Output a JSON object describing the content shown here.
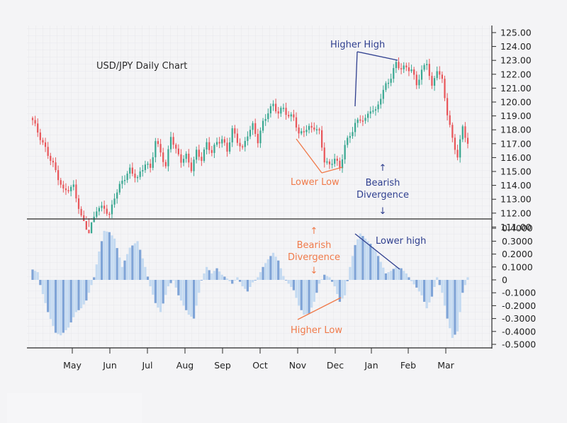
{
  "chart_data": [
    {
      "type": "candlestick",
      "title": "USD/JPY Daily Chart",
      "ylim": [
        110.5,
        125.5
      ],
      "y_ticks": [
        "125.00",
        "124.00",
        "123.00",
        "122.00",
        "121.00",
        "120.00",
        "119.00",
        "118.00",
        "117.00",
        "116.00",
        "115.00",
        "114.00",
        "113.00",
        "112.00",
        "111.00"
      ],
      "x_months": [
        "May",
        "Jun",
        "Jul",
        "Aug",
        "Sep",
        "Oct",
        "Nov",
        "Dec",
        "Jan",
        "Feb",
        "Mar"
      ],
      "grid": true,
      "colors": {
        "up": "#3aa892",
        "down": "#e8575b"
      },
      "close_path": [
        [
          0,
          118.7
        ],
        [
          4,
          117.0
        ],
        [
          8,
          115.5
        ],
        [
          12,
          113.6
        ],
        [
          16,
          113.9
        ],
        [
          19,
          111.7
        ],
        [
          22,
          110.6
        ],
        [
          25,
          112.3
        ],
        [
          28,
          112.4
        ],
        [
          30,
          111.8
        ],
        [
          32,
          113.2
        ],
        [
          35,
          114.3
        ],
        [
          38,
          115.1
        ],
        [
          41,
          114.5
        ],
        [
          44,
          115.6
        ],
        [
          46,
          115.2
        ],
        [
          48,
          117.2
        ],
        [
          50,
          116.4
        ],
        [
          52,
          115.3
        ],
        [
          54,
          117.6
        ],
        [
          56,
          116.5
        ],
        [
          58,
          115.8
        ],
        [
          60,
          116.1
        ],
        [
          62,
          115.2
        ],
        [
          64,
          116.4
        ],
        [
          66,
          115.9
        ],
        [
          68,
          117.0
        ],
        [
          70,
          116.4
        ],
        [
          72,
          117.1
        ],
        [
          74,
          117.3
        ],
        [
          76,
          116.5
        ],
        [
          78,
          118.0
        ],
        [
          80,
          117.2
        ],
        [
          82,
          116.6
        ],
        [
          84,
          117.7
        ],
        [
          86,
          118.3
        ],
        [
          88,
          117.2
        ],
        [
          90,
          118.5
        ],
        [
          92,
          119.3
        ],
        [
          94,
          119.8
        ],
        [
          96,
          119.2
        ],
        [
          98,
          119.6
        ],
        [
          100,
          118.9
        ],
        [
          102,
          119.0
        ],
        [
          104,
          117.6
        ],
        [
          106,
          118.0
        ],
        [
          108,
          118.1
        ],
        [
          110,
          118.2
        ],
        [
          112,
          117.8
        ],
        [
          114,
          115.8
        ],
        [
          116,
          115.4
        ],
        [
          118,
          116.0
        ],
        [
          120,
          115.2
        ],
        [
          122,
          116.9
        ],
        [
          124,
          117.6
        ],
        [
          126,
          118.4
        ],
        [
          128,
          118.8
        ],
        [
          130,
          118.7
        ],
        [
          132,
          119.5
        ],
        [
          134,
          119.3
        ],
        [
          136,
          120.4
        ],
        [
          138,
          121.2
        ],
        [
          140,
          121.8
        ],
        [
          142,
          122.8
        ],
        [
          144,
          122.4
        ],
        [
          146,
          122.5
        ],
        [
          148,
          122.3
        ],
        [
          150,
          121.3
        ],
        [
          152,
          122.2
        ],
        [
          154,
          122.9
        ],
        [
          156,
          121.0
        ],
        [
          158,
          122.4
        ],
        [
          160,
          121.5
        ],
        [
          162,
          119.2
        ],
        [
          164,
          117.3
        ],
        [
          166,
          116.1
        ],
        [
          168,
          118.2
        ],
        [
          170,
          117.0
        ]
      ]
    },
    {
      "type": "bar",
      "ylim": [
        -0.5,
        0.4
      ],
      "y_ticks": [
        "0.4000",
        "0.3000",
        "0.2000",
        "0.1000",
        "0",
        "-0.1000",
        "-0.2000",
        "-0.3000",
        "-0.4000",
        "-0.5000"
      ],
      "x_months": [
        "May",
        "Jun",
        "Jul",
        "Aug",
        "Sep",
        "Oct",
        "Nov",
        "Dec",
        "Jan",
        "Feb",
        "Mar"
      ],
      "colors": {
        "light": "#c4daf1",
        "dark": "#7fa4d7"
      },
      "value_path": [
        [
          0,
          0.08
        ],
        [
          2,
          0.06
        ],
        [
          3,
          -0.04
        ],
        [
          6,
          -0.25
        ],
        [
          9,
          -0.41
        ],
        [
          11,
          -0.43
        ],
        [
          14,
          -0.37
        ],
        [
          17,
          -0.25
        ],
        [
          19,
          -0.22
        ],
        [
          21,
          -0.16
        ],
        [
          24,
          0.02
        ],
        [
          26,
          0.22
        ],
        [
          28,
          0.38
        ],
        [
          30,
          0.37
        ],
        [
          32,
          0.32
        ],
        [
          35,
          0.1
        ],
        [
          38,
          0.25
        ],
        [
          41,
          0.3
        ],
        [
          44,
          0.1
        ],
        [
          46,
          -0.05
        ],
        [
          48,
          -0.18
        ],
        [
          50,
          -0.25
        ],
        [
          53,
          -0.05
        ],
        [
          55,
          0.0
        ],
        [
          57,
          -0.12
        ],
        [
          59,
          -0.2
        ],
        [
          61,
          -0.27
        ],
        [
          63,
          -0.3
        ],
        [
          66,
          0.0
        ],
        [
          68,
          0.1
        ],
        [
          70,
          0.05
        ],
        [
          72,
          0.09
        ],
        [
          74,
          0.04
        ],
        [
          76,
          0.01
        ],
        [
          78,
          -0.03
        ],
        [
          80,
          0.02
        ],
        [
          82,
          -0.05
        ],
        [
          84,
          -0.09
        ],
        [
          86,
          -0.02
        ],
        [
          88,
          0.02
        ],
        [
          90,
          0.1
        ],
        [
          92,
          0.16
        ],
        [
          94,
          0.21
        ],
        [
          96,
          0.15
        ],
        [
          98,
          0.03
        ],
        [
          100,
          -0.03
        ],
        [
          102,
          -0.08
        ],
        [
          104,
          -0.2
        ],
        [
          106,
          -0.27
        ],
        [
          108,
          -0.26
        ],
        [
          110,
          -0.17
        ],
        [
          112,
          -0.03
        ],
        [
          114,
          0.04
        ],
        [
          116,
          0.02
        ],
        [
          118,
          -0.05
        ],
        [
          120,
          -0.17
        ],
        [
          122,
          -0.12
        ],
        [
          124,
          0.1
        ],
        [
          126,
          0.27
        ],
        [
          128,
          0.36
        ],
        [
          130,
          0.32
        ],
        [
          132,
          0.28
        ],
        [
          134,
          0.23
        ],
        [
          136,
          0.14
        ],
        [
          138,
          0.05
        ],
        [
          140,
          0.07
        ],
        [
          142,
          0.1
        ],
        [
          144,
          0.09
        ],
        [
          146,
          0.05
        ],
        [
          148,
          -0.01
        ],
        [
          150,
          -0.06
        ],
        [
          152,
          -0.12
        ],
        [
          154,
          -0.22
        ],
        [
          156,
          -0.13
        ],
        [
          158,
          0.02
        ],
        [
          160,
          -0.1
        ],
        [
          162,
          -0.3
        ],
        [
          164,
          -0.45
        ],
        [
          166,
          -0.4
        ],
        [
          168,
          -0.1
        ],
        [
          170,
          0.02
        ]
      ]
    }
  ],
  "annotations": {
    "higher_high": "Higher High",
    "lower_low": "Lower Low",
    "bearish_divergence_1": "Bearish",
    "bearish_divergence_2": "Divergence",
    "lower_high": "Lower high",
    "higher_low": "Higher Low"
  }
}
